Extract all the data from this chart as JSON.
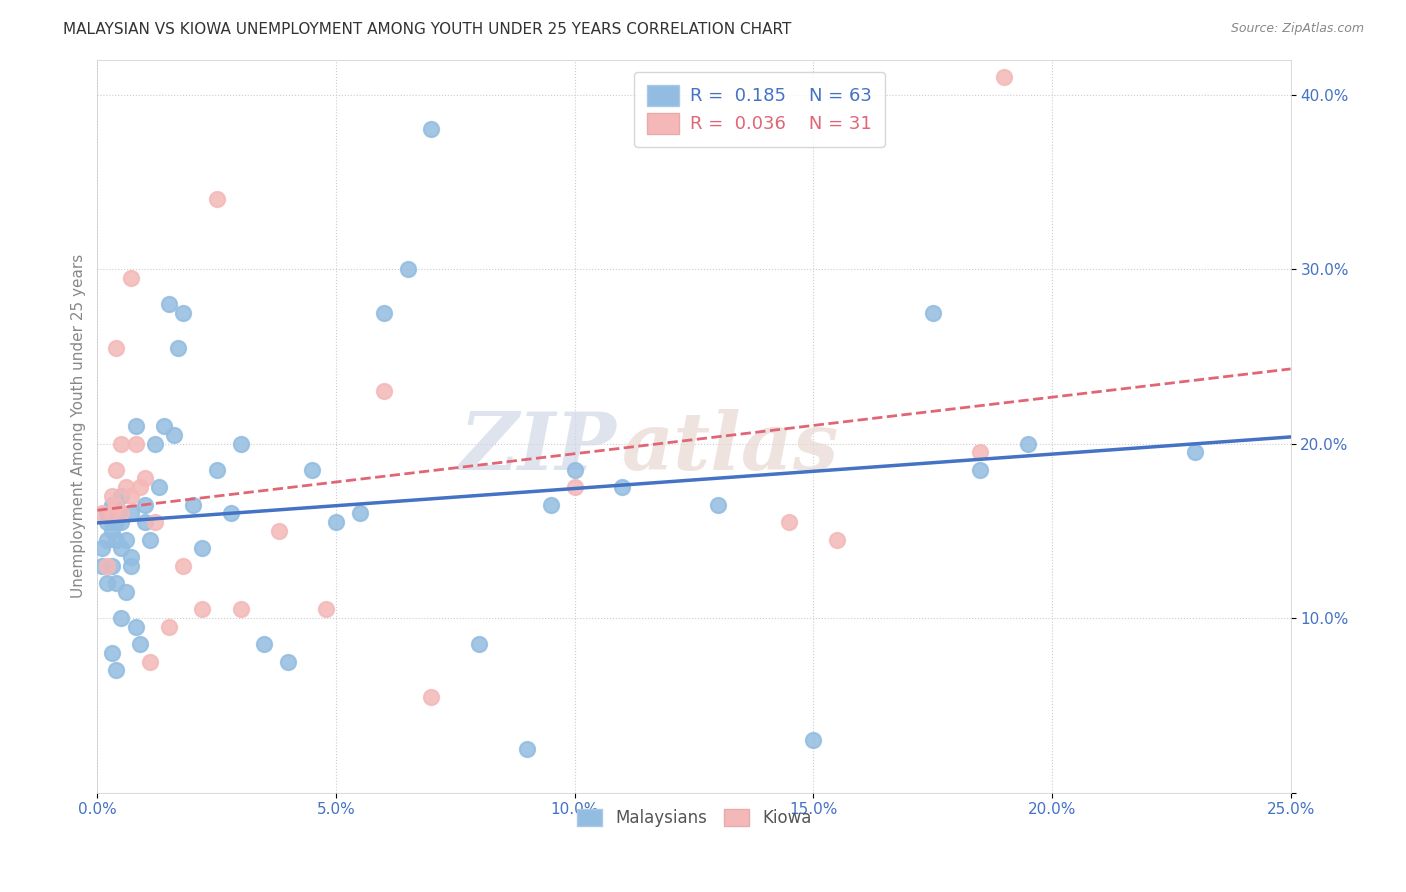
{
  "title": "MALAYSIAN VS KIOWA UNEMPLOYMENT AMONG YOUTH UNDER 25 YEARS CORRELATION CHART",
  "source": "Source: ZipAtlas.com",
  "ylabel_label": "Unemployment Among Youth under 25 years",
  "xlim": [
    0.0,
    0.25
  ],
  "ylim": [
    0.0,
    0.42
  ],
  "xticks": [
    0.0,
    0.05,
    0.1,
    0.15,
    0.2,
    0.25
  ],
  "yticks": [
    0.0,
    0.1,
    0.2,
    0.3,
    0.4
  ],
  "xtick_labels": [
    "0.0%",
    "5.0%",
    "10.0%",
    "15.0%",
    "20.0%",
    "25.0%"
  ],
  "ytick_labels": [
    "",
    "10.0%",
    "20.0%",
    "30.0%",
    "40.0%"
  ],
  "blue_color": "#92bce0",
  "pink_color": "#f4b8b8",
  "blue_R": 0.185,
  "blue_N": 63,
  "pink_R": 0.036,
  "pink_N": 31,
  "blue_line_color": "#4472c4",
  "pink_line_color": "#e06676",
  "tick_label_color": "#4472c4",
  "watermark_zip": "ZIP",
  "watermark_atlas": "atlas",
  "legend_blue_label": "Malaysians",
  "legend_pink_label": "Kiowa",
  "blue_scatter_x": [
    0.001,
    0.001,
    0.002,
    0.002,
    0.002,
    0.002,
    0.003,
    0.003,
    0.003,
    0.003,
    0.003,
    0.004,
    0.004,
    0.004,
    0.004,
    0.004,
    0.005,
    0.005,
    0.005,
    0.005,
    0.005,
    0.006,
    0.006,
    0.007,
    0.007,
    0.007,
    0.008,
    0.008,
    0.009,
    0.01,
    0.01,
    0.011,
    0.012,
    0.013,
    0.014,
    0.015,
    0.016,
    0.017,
    0.018,
    0.02,
    0.022,
    0.025,
    0.028,
    0.03,
    0.035,
    0.04,
    0.045,
    0.05,
    0.055,
    0.06,
    0.065,
    0.07,
    0.08,
    0.09,
    0.095,
    0.1,
    0.11,
    0.13,
    0.15,
    0.175,
    0.185,
    0.195,
    0.23
  ],
  "blue_scatter_y": [
    0.13,
    0.14,
    0.12,
    0.145,
    0.155,
    0.16,
    0.08,
    0.13,
    0.15,
    0.155,
    0.165,
    0.07,
    0.12,
    0.145,
    0.155,
    0.165,
    0.1,
    0.14,
    0.155,
    0.16,
    0.17,
    0.115,
    0.145,
    0.13,
    0.135,
    0.16,
    0.095,
    0.21,
    0.085,
    0.155,
    0.165,
    0.145,
    0.2,
    0.175,
    0.21,
    0.28,
    0.205,
    0.255,
    0.275,
    0.165,
    0.14,
    0.185,
    0.16,
    0.2,
    0.085,
    0.075,
    0.185,
    0.155,
    0.16,
    0.275,
    0.3,
    0.38,
    0.085,
    0.025,
    0.165,
    0.185,
    0.175,
    0.165,
    0.03,
    0.275,
    0.185,
    0.2,
    0.195
  ],
  "pink_scatter_x": [
    0.001,
    0.002,
    0.003,
    0.003,
    0.004,
    0.004,
    0.004,
    0.005,
    0.005,
    0.006,
    0.007,
    0.007,
    0.008,
    0.009,
    0.01,
    0.011,
    0.012,
    0.015,
    0.018,
    0.022,
    0.025,
    0.03,
    0.038,
    0.048,
    0.06,
    0.07,
    0.1,
    0.145,
    0.155,
    0.185,
    0.19
  ],
  "pink_scatter_y": [
    0.16,
    0.13,
    0.16,
    0.17,
    0.165,
    0.185,
    0.255,
    0.16,
    0.2,
    0.175,
    0.17,
    0.295,
    0.2,
    0.175,
    0.18,
    0.075,
    0.155,
    0.095,
    0.13,
    0.105,
    0.34,
    0.105,
    0.15,
    0.105,
    0.23,
    0.055,
    0.175,
    0.155,
    0.145,
    0.195,
    0.41
  ]
}
